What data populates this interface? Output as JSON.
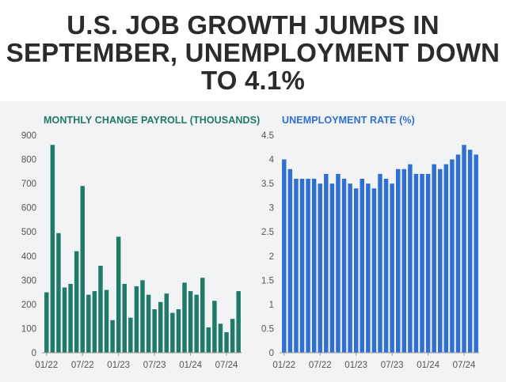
{
  "headline": "U.S. JOB GROWTH JUMPS IN SEPTEMBER, UNEMPLOYMENT DOWN TO 4.1%",
  "colors": {
    "payroll": "#1f7a67",
    "unemployment": "#2f6fd1",
    "background_band": "#f2f3f4"
  },
  "chart_data": [
    {
      "type": "bar",
      "title": "MONTHLY CHANGE PAYROLL (THOUSANDS)",
      "xlabel": "",
      "ylabel": "",
      "ylim": [
        0,
        900
      ],
      "yticks": [
        0,
        100,
        200,
        300,
        400,
        500,
        600,
        700,
        800,
        900
      ],
      "x_tick_labels": [
        "01/22",
        "07/22",
        "01/23",
        "07/23",
        "01/24",
        "07/24"
      ],
      "categories": [
        "01/22",
        "02/22",
        "03/22",
        "04/22",
        "05/22",
        "06/22",
        "07/22",
        "08/22",
        "09/22",
        "10/22",
        "11/22",
        "12/22",
        "01/23",
        "02/23",
        "03/23",
        "04/23",
        "05/23",
        "06/23",
        "07/23",
        "08/23",
        "09/23",
        "10/23",
        "11/23",
        "12/23",
        "01/24",
        "02/24",
        "03/24",
        "04/24",
        "05/24",
        "06/24",
        "07/24",
        "08/24",
        "09/24"
      ],
      "values": [
        250,
        860,
        495,
        270,
        285,
        420,
        690,
        240,
        255,
        360,
        260,
        135,
        480,
        285,
        145,
        275,
        300,
        240,
        180,
        210,
        245,
        165,
        180,
        290,
        255,
        240,
        310,
        105,
        215,
        120,
        85,
        140,
        255
      ]
    },
    {
      "type": "bar",
      "title": "UNEMPLOYMENT RATE (%)",
      "xlabel": "",
      "ylabel": "",
      "ylim": [
        0,
        4.5
      ],
      "yticks": [
        0,
        0.5,
        1,
        1.5,
        2,
        2.5,
        3,
        3.5,
        4,
        4.5
      ],
      "x_tick_labels": [
        "01/22",
        "07/22",
        "01/23",
        "07/23",
        "01/24",
        "07/24"
      ],
      "categories": [
        "01/22",
        "02/22",
        "03/22",
        "04/22",
        "05/22",
        "06/22",
        "07/22",
        "08/22",
        "09/22",
        "10/22",
        "11/22",
        "12/22",
        "01/23",
        "02/23",
        "03/23",
        "04/23",
        "05/23",
        "06/23",
        "07/23",
        "08/23",
        "09/23",
        "10/23",
        "11/23",
        "12/23",
        "01/24",
        "02/24",
        "03/24",
        "04/24",
        "05/24",
        "06/24",
        "07/24",
        "08/24",
        "09/24"
      ],
      "values": [
        4.0,
        3.8,
        3.6,
        3.6,
        3.6,
        3.6,
        3.5,
        3.7,
        3.5,
        3.7,
        3.6,
        3.5,
        3.4,
        3.6,
        3.5,
        3.4,
        3.7,
        3.6,
        3.5,
        3.8,
        3.8,
        3.9,
        3.7,
        3.7,
        3.7,
        3.9,
        3.8,
        3.9,
        4.0,
        4.1,
        4.3,
        4.2,
        4.1
      ]
    }
  ]
}
